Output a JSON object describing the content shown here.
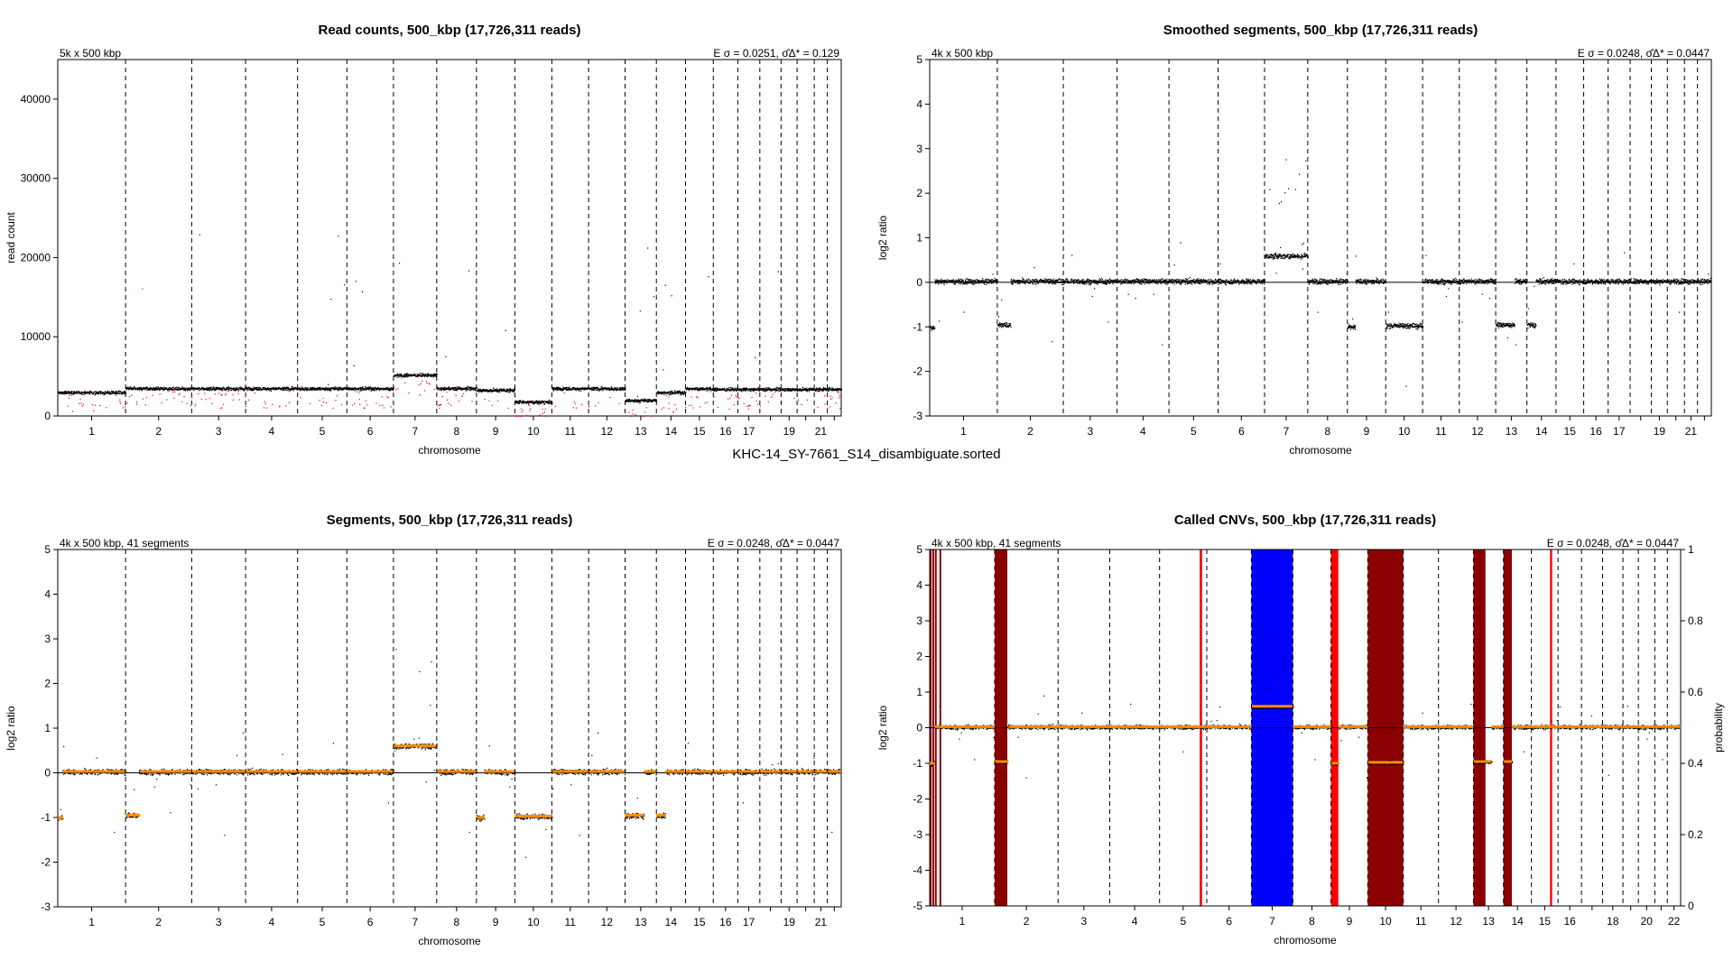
{
  "page": {
    "sample_label": "KHC-14_SY-7661_S14_disambiguate.sorted"
  },
  "chart_data": [
    {
      "id": "read-counts",
      "type": "scatter",
      "title": "Read counts, 500_kbp (17,726,311 reads)",
      "top_left_note": "5k x 500 kbp",
      "top_right_note": "E σ = 0.0251, σ̂Δ* = 0.129",
      "xlabel": "chromosome",
      "ylabel": "read count",
      "ylim": [
        0,
        45000
      ],
      "yticks": [
        0,
        10000,
        20000,
        30000,
        40000
      ],
      "ytick_labels": [
        "0",
        "10000",
        "20000",
        "30000",
        "40000"
      ],
      "chromosome_tick_labels": [
        "1",
        "2",
        "3",
        "4",
        "5",
        "6",
        "7",
        "8",
        "9",
        "10",
        "11",
        "12",
        "13",
        "14",
        "15",
        "16",
        "17",
        "19",
        "21"
      ],
      "colors": {
        "points": "#000000",
        "outliers": "#ff0000",
        "line": "#8b0000"
      },
      "segments": [
        {
          "chr": "1",
          "level": 3000
        },
        {
          "chr": "2",
          "level": 3500
        },
        {
          "chr": "3",
          "level": 3500
        },
        {
          "chr": "4",
          "level": 3500
        },
        {
          "chr": "5",
          "level": 3500
        },
        {
          "chr": "6",
          "level": 3500
        },
        {
          "chr": "7",
          "level": 5200
        },
        {
          "chr": "8",
          "level": 3500
        },
        {
          "chr": "9",
          "level": 3300
        },
        {
          "chr": "10",
          "level": 1800
        },
        {
          "chr": "11",
          "level": 3500
        },
        {
          "chr": "12",
          "level": 3500
        },
        {
          "chr": "13",
          "level": 2000
        },
        {
          "chr": "14",
          "level": 3000
        },
        {
          "chr": "15",
          "level": 3500
        },
        {
          "chr": "16",
          "level": 3400
        },
        {
          "chr": "17",
          "level": 3400
        },
        {
          "chr": "18",
          "level": 3400
        },
        {
          "chr": "19",
          "level": 3400
        },
        {
          "chr": "20",
          "level": 3400
        },
        {
          "chr": "21",
          "level": 3400
        },
        {
          "chr": "22",
          "level": 3400
        }
      ]
    },
    {
      "id": "smoothed-segments",
      "type": "scatter",
      "title": "Smoothed segments,  500_kbp (17,726,311 reads)",
      "top_left_note": "4k x 500 kbp",
      "top_right_note": "E σ = 0.0248, σ̂Δ* = 0.0447",
      "xlabel": "chromosome",
      "ylabel": "log2 ratio",
      "ylim": [
        -3,
        5
      ],
      "yticks": [
        -3,
        -2,
        -1,
        0,
        1,
        2,
        3,
        4,
        5
      ],
      "chromosome_tick_labels": [
        "1",
        "2",
        "3",
        "4",
        "5",
        "6",
        "7",
        "8",
        "9",
        "10",
        "11",
        "12",
        "13",
        "14",
        "15",
        "16",
        "17",
        "19",
        "21"
      ],
      "segments": [
        {
          "chr": "1",
          "start": 0.0,
          "end": 0.07,
          "value": -1.0
        },
        {
          "chr": "1",
          "start": 0.07,
          "end": 1.0,
          "value": 0.05
        },
        {
          "chr": "2",
          "start": 0.0,
          "end": 0.2,
          "value": -0.95
        },
        {
          "chr": "2",
          "start": 0.2,
          "end": 1.0,
          "value": 0.02
        },
        {
          "chr": "7",
          "start": 0.0,
          "end": 1.0,
          "value": 0.6
        },
        {
          "chr": "9",
          "start": 0.0,
          "end": 0.2,
          "value": -1.0
        },
        {
          "chr": "10",
          "start": 0.0,
          "end": 1.0,
          "value": -0.97
        },
        {
          "chr": "13",
          "start": 0.0,
          "end": 0.6,
          "value": -0.95
        },
        {
          "chr": "14",
          "start": 0.0,
          "end": 0.3,
          "value": -0.95
        },
        {
          "chr": "15",
          "start": 0.0,
          "end": 1.0,
          "value": 0.05
        }
      ]
    },
    {
      "id": "segments",
      "type": "scatter",
      "title": "Segments, 500_kbp (17,726,311 reads)",
      "top_left_note": "4k x 500 kbp, 41 segments",
      "top_right_note": "E σ = 0.0248, σ̂Δ* = 0.0447",
      "xlabel": "chromosome",
      "ylabel": "log2 ratio",
      "ylim": [
        -3,
        5
      ],
      "yticks": [
        -3,
        -2,
        -1,
        0,
        1,
        2,
        3,
        4,
        5
      ],
      "chromosome_tick_labels": [
        "1",
        "2",
        "3",
        "4",
        "5",
        "6",
        "7",
        "8",
        "9",
        "10",
        "11",
        "12",
        "13",
        "14",
        "15",
        "16",
        "17",
        "19",
        "21"
      ],
      "segment_color": "#ff8c00"
    },
    {
      "id": "called-cnvs",
      "type": "scatter",
      "title": "Called CNVs, 500_kbp (17,726,311 reads)",
      "top_left_note": "4k x 500 kbp, 41 segments",
      "top_right_note": "E σ = 0.0248, σ̂Δ* = 0.0447",
      "xlabel": "chromosome",
      "ylabel": "log2 ratio",
      "ylabel_right": "probability",
      "ylim": [
        -5,
        5
      ],
      "yticks": [
        -5,
        -4,
        -3,
        -2,
        -1,
        0,
        1,
        2,
        3,
        4,
        5
      ],
      "ylim_right": [
        0,
        1
      ],
      "yticks_right": [
        0,
        0.2,
        0.4,
        0.6,
        0.8,
        1
      ],
      "ytick_labels_right": [
        "0",
        "0.2",
        "0.4",
        "0.6",
        "0.8",
        "1"
      ],
      "chromosome_tick_labels": [
        "1",
        "2",
        "3",
        "4",
        "5",
        "6",
        "7",
        "8",
        "9",
        "10",
        "11",
        "12",
        "13",
        "14",
        "15",
        "16",
        "18",
        "20",
        "22"
      ],
      "calls": [
        {
          "chr": "1",
          "start": 0.0,
          "end": 0.02,
          "type": "loss"
        },
        {
          "chr": "1",
          "start": 0.04,
          "end": 0.06,
          "type": "loss"
        },
        {
          "chr": "1",
          "start": 0.08,
          "end": 0.1,
          "type": "loss"
        },
        {
          "chr": "1",
          "start": 0.15,
          "end": 0.17,
          "type": "loss"
        },
        {
          "chr": "2",
          "start": 0.0,
          "end": 0.2,
          "type": "loss"
        },
        {
          "chr": "5",
          "start": 0.85,
          "end": 0.9,
          "type": "loss-light"
        },
        {
          "chr": "7",
          "start": 0.0,
          "end": 1.0,
          "type": "gain"
        },
        {
          "chr": "9",
          "start": 0.0,
          "end": 0.2,
          "type": "loss-light"
        },
        {
          "chr": "10",
          "start": 0.0,
          "end": 1.0,
          "type": "loss"
        },
        {
          "chr": "13",
          "start": 0.0,
          "end": 0.4,
          "type": "loss"
        },
        {
          "chr": "14",
          "start": 0.0,
          "end": 0.3,
          "type": "loss"
        },
        {
          "chr": "15",
          "start": 0.7,
          "end": 0.78,
          "type": "loss-light"
        }
      ],
      "colors": {
        "gain": "#0000ff",
        "loss": "#8b0000",
        "loss-light": "#ff0000",
        "segment": "#ff8c00"
      }
    }
  ]
}
